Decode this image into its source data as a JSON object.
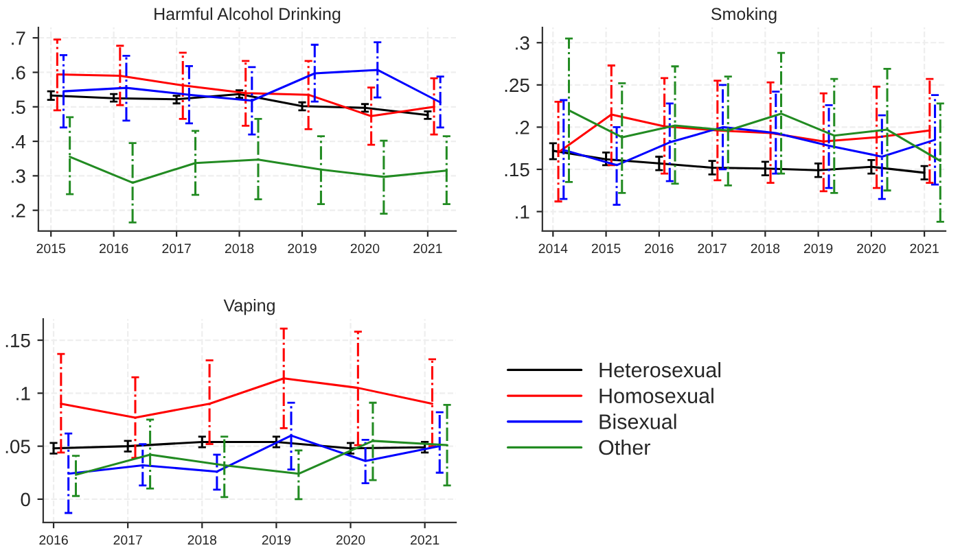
{
  "chart_data": [
    {
      "type": "line",
      "title": "Harmful Alcohol Drinking",
      "xlim": [
        2014.8,
        2021.45
      ],
      "ylim": [
        0.14,
        0.73
      ],
      "xticks": [
        2015,
        2016,
        2017,
        2018,
        2019,
        2020,
        2021
      ],
      "yticks": [
        {
          "value": 0.2,
          "label": ".2"
        },
        {
          "value": 0.3,
          "label": ".3"
        },
        {
          "value": 0.4,
          "label": ".4"
        },
        {
          "value": 0.5,
          "label": ".5"
        },
        {
          "value": 0.6,
          "label": ".6"
        },
        {
          "value": 0.7,
          "label": ".7"
        }
      ],
      "grid": true,
      "marker": "none",
      "line_style": "solid",
      "series": [
        {
          "color": "#000000",
          "x": [
            2015,
            2016,
            2017,
            2018,
            2019,
            2020,
            2021
          ],
          "values": [
            0.533,
            0.525,
            0.522,
            0.537,
            0.502,
            0.497,
            0.476
          ],
          "errors": [
            [
              0.52,
              0.545
            ],
            [
              0.515,
              0.537
            ],
            [
              0.51,
              0.532
            ],
            [
              0.526,
              0.548
            ],
            [
              0.49,
              0.513
            ],
            [
              0.486,
              0.508
            ],
            [
              0.465,
              0.487
            ]
          ]
        },
        {
          "color": "#ff0000",
          "x": [
            2015.1,
            2016.1,
            2017.1,
            2018.1,
            2019.1,
            2020.1,
            2021.1
          ],
          "values": [
            0.594,
            0.59,
            0.562,
            0.54,
            0.535,
            0.473,
            0.5
          ],
          "errors": [
            [
              0.49,
              0.695
            ],
            [
              0.505,
              0.677
            ],
            [
              0.465,
              0.657
            ],
            [
              0.445,
              0.633
            ],
            [
              0.435,
              0.633
            ],
            [
              0.39,
              0.556
            ],
            [
              0.42,
              0.583
            ]
          ]
        },
        {
          "color": "#0000ff",
          "x": [
            2015.2,
            2016.2,
            2017.2,
            2018.2,
            2019.2,
            2020.2,
            2021.2
          ],
          "values": [
            0.545,
            0.555,
            0.535,
            0.518,
            0.597,
            0.607,
            0.513
          ],
          "errors": [
            [
              0.44,
              0.65
            ],
            [
              0.46,
              0.648
            ],
            [
              0.452,
              0.618
            ],
            [
              0.42,
              0.615
            ],
            [
              0.515,
              0.68
            ],
            [
              0.527,
              0.687
            ],
            [
              0.44,
              0.588
            ]
          ]
        },
        {
          "color": "#228b22",
          "x": [
            2015.3,
            2016.3,
            2017.3,
            2018.3,
            2019.3,
            2020.3,
            2021.3
          ],
          "values": [
            0.355,
            0.28,
            0.337,
            0.347,
            0.318,
            0.297,
            0.315
          ],
          "errors": [
            [
              0.247,
              0.47
            ],
            [
              0.165,
              0.395
            ],
            [
              0.245,
              0.43
            ],
            [
              0.232,
              0.465
            ],
            [
              0.218,
              0.415
            ],
            [
              0.19,
              0.402
            ],
            [
              0.218,
              0.415
            ]
          ]
        }
      ]
    },
    {
      "type": "line",
      "title": "Smoking",
      "xlim": [
        2013.8,
        2021.4
      ],
      "ylim": [
        0.077,
        0.318
      ],
      "xticks": [
        2014,
        2015,
        2016,
        2017,
        2018,
        2019,
        2020,
        2021
      ],
      "yticks": [
        {
          "value": 0.1,
          "label": ".1"
        },
        {
          "value": 0.15,
          "label": ".15"
        },
        {
          "value": 0.2,
          "label": ".2"
        },
        {
          "value": 0.25,
          "label": ".25"
        },
        {
          "value": 0.3,
          "label": ".3"
        }
      ],
      "grid": true,
      "marker": "none",
      "line_style": "solid",
      "series": [
        {
          "color": "#000000",
          "x": [
            2014,
            2015,
            2016,
            2017,
            2018,
            2019,
            2020,
            2021
          ],
          "values": [
            0.172,
            0.162,
            0.157,
            0.152,
            0.151,
            0.149,
            0.153,
            0.146
          ],
          "errors": [
            [
              0.162,
              0.181
            ],
            [
              0.155,
              0.17
            ],
            [
              0.149,
              0.165
            ],
            [
              0.144,
              0.16
            ],
            [
              0.143,
              0.159
            ],
            [
              0.141,
              0.157
            ],
            [
              0.145,
              0.161
            ],
            [
              0.138,
              0.154
            ]
          ]
        },
        {
          "color": "#ff0000",
          "x": [
            2014.1,
            2015.1,
            2016.1,
            2017.1,
            2018.1,
            2019.1,
            2020.1,
            2021.1
          ],
          "values": [
            0.17,
            0.215,
            0.201,
            0.196,
            0.193,
            0.183,
            0.188,
            0.196
          ],
          "errors": [
            [
              0.112,
              0.23
            ],
            [
              0.155,
              0.273
            ],
            [
              0.145,
              0.258
            ],
            [
              0.137,
              0.255
            ],
            [
              0.134,
              0.253
            ],
            [
              0.124,
              0.24
            ],
            [
              0.128,
              0.248
            ],
            [
              0.134,
              0.257
            ]
          ]
        },
        {
          "color": "#0000ff",
          "x": [
            2014.2,
            2015.2,
            2016.2,
            2017.2,
            2018.2,
            2019.2,
            2020.2,
            2021.2
          ],
          "values": [
            0.173,
            0.155,
            0.182,
            0.2,
            0.193,
            0.178,
            0.165,
            0.185
          ],
          "errors": [
            [
              0.115,
              0.232
            ],
            [
              0.108,
              0.2
            ],
            [
              0.136,
              0.228
            ],
            [
              0.15,
              0.25
            ],
            [
              0.145,
              0.242
            ],
            [
              0.128,
              0.226
            ],
            [
              0.115,
              0.214
            ],
            [
              0.132,
              0.238
            ]
          ]
        },
        {
          "color": "#228b22",
          "x": [
            2014.3,
            2015.3,
            2016.3,
            2017.3,
            2018.3,
            2019.3,
            2020.3,
            2021.3
          ],
          "values": [
            0.22,
            0.188,
            0.202,
            0.196,
            0.216,
            0.19,
            0.197,
            0.16
          ],
          "errors": [
            [
              0.135,
              0.305
            ],
            [
              0.122,
              0.252
            ],
            [
              0.133,
              0.272
            ],
            [
              0.131,
              0.26
            ],
            [
              0.145,
              0.288
            ],
            [
              0.122,
              0.257
            ],
            [
              0.125,
              0.269
            ],
            [
              0.088,
              0.228
            ]
          ]
        }
      ]
    },
    {
      "type": "line",
      "title": "Vaping",
      "xlim": [
        2015.86,
        2021.42
      ],
      "ylim": [
        -0.022,
        0.17
      ],
      "xticks": [
        2016,
        2017,
        2018,
        2019,
        2020,
        2021
      ],
      "yticks": [
        {
          "value": 0,
          "label": "0"
        },
        {
          "value": 0.05,
          "label": ".05"
        },
        {
          "value": 0.1,
          "label": ".1"
        },
        {
          "value": 0.15,
          "label": ".15"
        }
      ],
      "grid": true,
      "marker": "none",
      "line_style": "solid",
      "legend": "right",
      "series": [
        {
          "name": "Heterosexual",
          "color": "#000000",
          "x": [
            2016,
            2017,
            2018,
            2019,
            2020,
            2021
          ],
          "values": [
            0.048,
            0.05,
            0.054,
            0.054,
            0.048,
            0.049
          ],
          "errors": [
            [
              0.043,
              0.053
            ],
            [
              0.045,
              0.055
            ],
            [
              0.049,
              0.059
            ],
            [
              0.049,
              0.059
            ],
            [
              0.043,
              0.053
            ],
            [
              0.044,
              0.054
            ]
          ]
        },
        {
          "name": "Homosexual",
          "color": "#ff0000",
          "x": [
            2016.1,
            2017.1,
            2018.1,
            2019.1,
            2020.1,
            2021.1
          ],
          "values": [
            0.09,
            0.077,
            0.09,
            0.114,
            0.105,
            0.09
          ],
          "errors": [
            [
              0.044,
              0.137
            ],
            [
              0.039,
              0.115
            ],
            [
              0.052,
              0.131
            ],
            [
              0.067,
              0.161
            ],
            [
              0.051,
              0.158
            ],
            [
              0.05,
              0.132
            ]
          ]
        },
        {
          "name": "Bisexual",
          "color": "#0000ff",
          "x": [
            2016.2,
            2017.2,
            2018.2,
            2019.2,
            2020.2,
            2021.2
          ],
          "values": [
            0.024,
            0.032,
            0.026,
            0.06,
            0.036,
            0.05
          ],
          "errors": [
            [
              -0.013,
              0.062
            ],
            [
              0.013,
              0.052
            ],
            [
              0.009,
              0.042
            ],
            [
              0.028,
              0.091
            ],
            [
              0.015,
              0.056
            ],
            [
              0.025,
              0.082
            ]
          ]
        },
        {
          "name": "Other",
          "color": "#228b22",
          "x": [
            2016.3,
            2017.3,
            2018.3,
            2019.3,
            2020.3,
            2021.3
          ],
          "values": [
            0.023,
            0.042,
            0.032,
            0.024,
            0.055,
            0.051
          ],
          "errors": [
            [
              0.003,
              0.041
            ],
            [
              0.01,
              0.075
            ],
            [
              0.002,
              0.059
            ],
            [
              0,
              0.046
            ],
            [
              0.018,
              0.091
            ],
            [
              0.013,
              0.089
            ]
          ]
        }
      ]
    }
  ]
}
